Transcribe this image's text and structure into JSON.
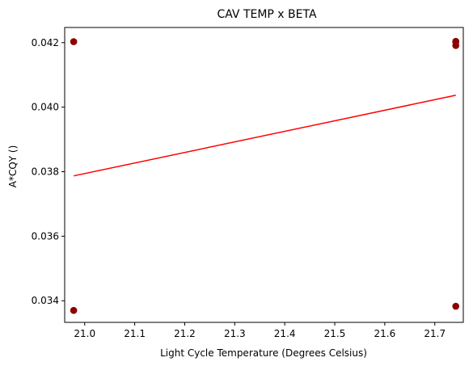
{
  "chart_data": {
    "type": "scatter",
    "title": "CAV TEMP x BETA",
    "xlabel": "Light Cycle Temperature (Degrees Celsius)",
    "ylabel": "A*CQY ()",
    "xlim": [
      20.96,
      21.757
    ],
    "ylim": [
      0.03333,
      0.04247
    ],
    "xticks": [
      21.0,
      21.1,
      21.2,
      21.3,
      21.4,
      21.5,
      21.6,
      21.7
    ],
    "xtick_labels": [
      "21.0",
      "21.1",
      "21.2",
      "21.3",
      "21.4",
      "21.5",
      "21.6",
      "21.7"
    ],
    "yticks": [
      0.034,
      0.036,
      0.038,
      0.04,
      0.042
    ],
    "ytick_labels": [
      "0.034",
      "0.036",
      "0.038",
      "0.040",
      "0.042"
    ],
    "grid": false,
    "series": [
      {
        "kind": "scatter",
        "color": "#8b0000",
        "x": [
          20.978,
          20.978,
          21.742,
          21.742,
          21.742,
          21.742
        ],
        "y": [
          0.04203,
          0.0337,
          0.04204,
          0.04191,
          0.04202,
          0.03383
        ]
      },
      {
        "kind": "line",
        "color": "#ff0000",
        "x": [
          20.978,
          21.742
        ],
        "y": [
          0.03787,
          0.04037
        ]
      }
    ]
  }
}
